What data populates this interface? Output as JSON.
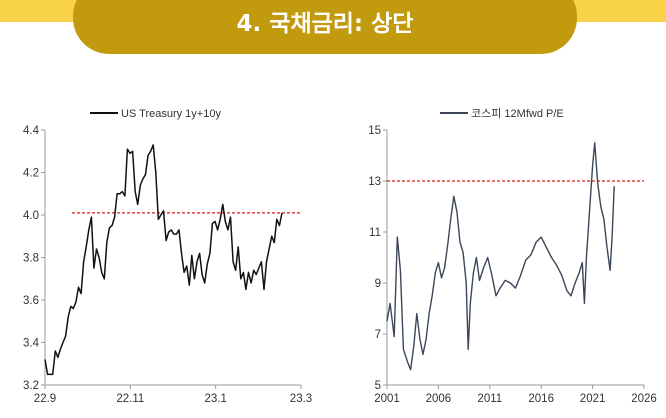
{
  "page": {
    "title": "4. 국채금리: 상단"
  },
  "colors": {
    "band": "#f9d34a",
    "pill": "#c29a0e",
    "reference_line": "#e01b1b",
    "series_left": "#111111",
    "series_right": "#3b4658"
  },
  "chart_data": [
    {
      "type": "line",
      "legend": "US Treasury 1y+10y",
      "x_ticks": [
        "22.9",
        "22.11",
        "23.1",
        "23.3"
      ],
      "y_ticks": [
        "3.2",
        "3.4",
        "3.6",
        "3.8",
        "4.0",
        "4.2",
        "4.4"
      ],
      "ylim": [
        3.2,
        4.4
      ],
      "reference_line": {
        "value": 4.01,
        "style": "dashed"
      },
      "series": [
        {
          "values": [
            3.32,
            3.25,
            3.25,
            3.25,
            3.36,
            3.33,
            3.37,
            3.4,
            3.43,
            3.52,
            3.57,
            3.56,
            3.59,
            3.66,
            3.63,
            3.78,
            3.85,
            3.93,
            3.99,
            3.75,
            3.84,
            3.8,
            3.73,
            3.7,
            3.87,
            3.94,
            3.95,
            3.99,
            4.1,
            4.1,
            4.11,
            4.09,
            4.31,
            4.29,
            4.3,
            4.11,
            4.05,
            4.14,
            4.17,
            4.19,
            4.28,
            4.3,
            4.33,
            4.2,
            3.98,
            4.0,
            4.02,
            3.88,
            3.92,
            3.93,
            3.91,
            3.91,
            3.93,
            3.82,
            3.73,
            3.76,
            3.67,
            3.81,
            3.7,
            3.78,
            3.82,
            3.72,
            3.68,
            3.77,
            3.82,
            3.96,
            3.97,
            3.93,
            3.98,
            4.05,
            3.97,
            3.93,
            3.99,
            3.78,
            3.74,
            3.85,
            3.7,
            3.73,
            3.65,
            3.73,
            3.68,
            3.74,
            3.72,
            3.75,
            3.78,
            3.65,
            3.78,
            3.84,
            3.9,
            3.87,
            3.98,
            3.95,
            4.01
          ]
        }
      ]
    },
    {
      "type": "line",
      "legend": "코스피 12Mfwd P/E",
      "x_ticks": [
        "2001",
        "2006",
        "2011",
        "2016",
        "2021",
        "2026"
      ],
      "y_ticks": [
        "5",
        "7",
        "9",
        "11",
        "13",
        "15"
      ],
      "ylim": [
        5,
        15
      ],
      "xlim": [
        2001,
        2026
      ],
      "reference_line": {
        "value": 13,
        "style": "dashed"
      },
      "series": [
        {
          "x": [
            2001.0,
            2001.3,
            2001.7,
            2002.0,
            2002.3,
            2002.6,
            2003.0,
            2003.3,
            2003.6,
            2003.9,
            2004.2,
            2004.5,
            2004.8,
            2005.1,
            2005.4,
            2005.7,
            2006.0,
            2006.3,
            2006.6,
            2006.9,
            2007.2,
            2007.5,
            2007.8,
            2008.1,
            2008.4,
            2008.7,
            2008.9,
            2009.1,
            2009.4,
            2009.7,
            2010.0,
            2010.4,
            2010.8,
            2011.2,
            2011.6,
            2012.0,
            2012.5,
            2013.0,
            2013.5,
            2014.0,
            2014.5,
            2015.0,
            2015.5,
            2016.0,
            2016.5,
            2017.0,
            2017.5,
            2018.0,
            2018.5,
            2018.9,
            2019.3,
            2019.7,
            2020.0,
            2020.2,
            2020.4,
            2020.7,
            2021.0,
            2021.2,
            2021.5,
            2021.8,
            2022.1,
            2022.4,
            2022.7,
            2022.9,
            2023.1
          ],
          "values": [
            7.5,
            8.2,
            6.9,
            10.8,
            9.5,
            6.4,
            5.9,
            5.6,
            6.5,
            7.8,
            6.8,
            6.2,
            6.8,
            7.8,
            8.5,
            9.4,
            9.8,
            9.2,
            9.6,
            10.5,
            11.5,
            12.4,
            11.8,
            10.6,
            10.2,
            9.0,
            6.4,
            8.2,
            9.4,
            10.0,
            9.1,
            9.6,
            10.0,
            9.3,
            8.5,
            8.8,
            9.1,
            9.0,
            8.8,
            9.3,
            9.9,
            10.1,
            10.6,
            10.8,
            10.4,
            10.0,
            9.7,
            9.3,
            8.7,
            8.5,
            9.0,
            9.4,
            9.8,
            8.2,
            10.0,
            11.8,
            13.6,
            14.5,
            12.9,
            12.0,
            11.5,
            10.4,
            9.5,
            10.8,
            12.8
          ]
        }
      ]
    }
  ]
}
